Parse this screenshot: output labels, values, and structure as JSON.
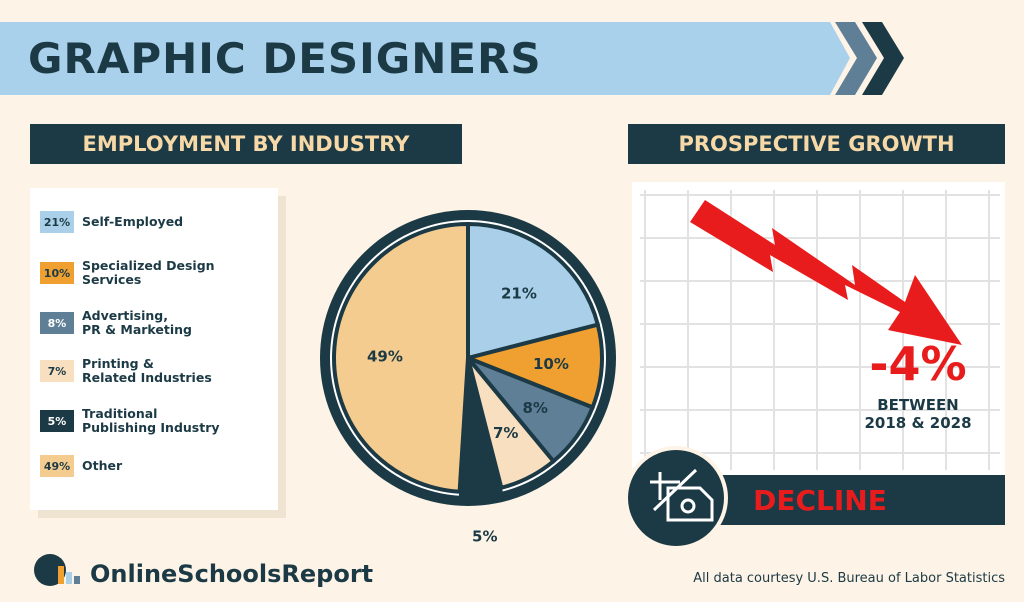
{
  "title": "GRAPHIC DESIGNERS",
  "chart_data": {
    "type": "pie",
    "title": "EMPLOYMENT BY INDUSTRY",
    "categories": [
      "Self-Employed",
      "Specialized Design Services",
      "Advertising,\nPR & Marketing",
      "Printing &\nRelated Industries",
      "Traditional\nPublishing Industry",
      "Other"
    ],
    "values": [
      21,
      10,
      8,
      7,
      5,
      49
    ],
    "value_labels": [
      "21%",
      "10%",
      "8%",
      "7%",
      "5%",
      "49%"
    ],
    "colors": [
      "#a9cfe9",
      "#f0a030",
      "#5f7f96",
      "#f7dfbf",
      "#1c3a45",
      "#f5cc8f"
    ]
  },
  "growth": {
    "title": "PROSPECTIVE GROWTH",
    "value": "-4%",
    "period_line1": "BETWEEN",
    "period_line2": "2018 & 2028",
    "label": "DECLINE"
  },
  "footer": {
    "brand": "OnlineSchoolsReport",
    "source": "All data courtesy U.S. Bureau of Labor Statistics"
  }
}
